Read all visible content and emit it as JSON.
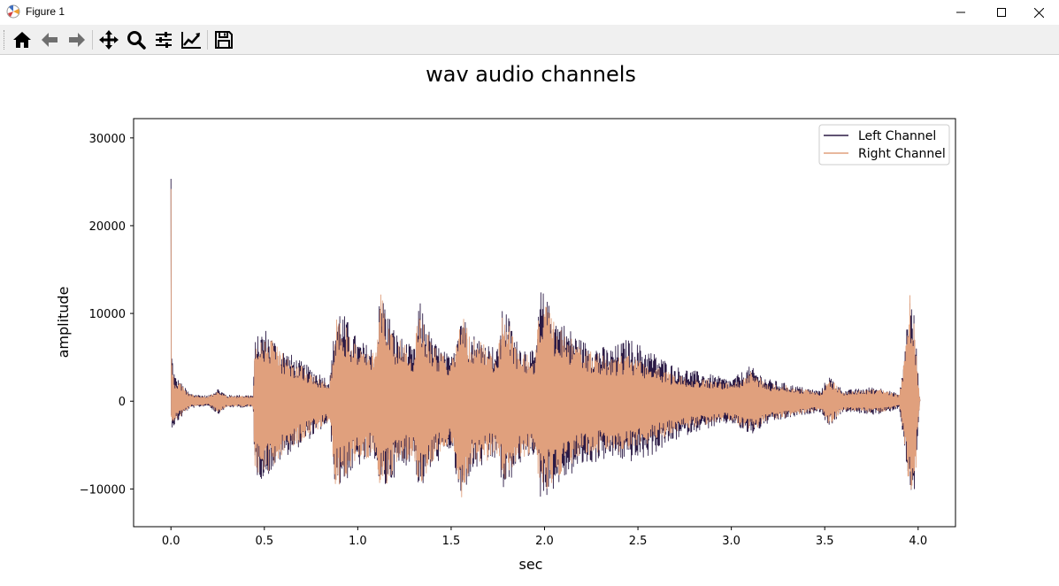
{
  "window": {
    "title": "Figure 1",
    "app_icon": "matplotlib-icon",
    "controls": [
      "minimize-icon",
      "maximize-icon",
      "close-icon"
    ]
  },
  "toolbar": {
    "buttons": [
      {
        "name": "home",
        "icon": "home-icon"
      },
      {
        "name": "back",
        "icon": "arrow-left-icon"
      },
      {
        "name": "forward",
        "icon": "arrow-right-icon"
      },
      {
        "name": "pan",
        "icon": "move-icon"
      },
      {
        "name": "zoom",
        "icon": "magnifier-icon"
      },
      {
        "name": "configure-subplots",
        "icon": "sliders-icon"
      },
      {
        "name": "edit-axis",
        "icon": "line-chart-icon"
      },
      {
        "name": "save",
        "icon": "floppy-disk-icon"
      }
    ]
  },
  "chart_data": {
    "type": "line",
    "title": "wav audio channels",
    "xlabel": "sec",
    "ylabel": "amplitude",
    "xlim": [
      -0.2,
      4.2
    ],
    "ylim": [
      -14300,
      32200
    ],
    "xticks": [
      0.0,
      0.5,
      1.0,
      1.5,
      2.0,
      2.5,
      3.0,
      3.5,
      4.0
    ],
    "xtick_labels": [
      "0.0",
      "0.5",
      "1.0",
      "1.5",
      "2.0",
      "2.5",
      "3.0",
      "3.5",
      "4.0"
    ],
    "yticks": [
      -10000,
      0,
      10000,
      20000,
      30000
    ],
    "ytick_labels": [
      "−10000",
      "0",
      "10000",
      "20000",
      "30000"
    ],
    "grid": false,
    "legend": {
      "position": "top-right"
    },
    "series": [
      {
        "name": "Left Channel",
        "color": "#2b1a45",
        "envelope": {
          "x": [
            0.0,
            0.003,
            0.02,
            0.05,
            0.1,
            0.2,
            0.25,
            0.3,
            0.44,
            0.45,
            0.5,
            0.6,
            0.7,
            0.85,
            0.88,
            0.9,
            1.0,
            1.1,
            1.12,
            1.2,
            1.3,
            1.33,
            1.4,
            1.5,
            1.55,
            1.6,
            1.75,
            1.78,
            1.85,
            1.95,
            1.98,
            2.05,
            2.2,
            2.35,
            2.45,
            2.55,
            2.7,
            2.8,
            2.9,
            3.0,
            3.1,
            3.2,
            3.3,
            3.4,
            3.48,
            3.52,
            3.6,
            3.75,
            3.8,
            3.9,
            3.93,
            3.95,
            3.98,
            4.0,
            4.01
          ],
          "upper": [
            30000,
            6000,
            3000,
            2200,
            900,
            600,
            1500,
            700,
            700,
            7000,
            8500,
            6000,
            4500,
            2500,
            9500,
            11000,
            7000,
            6000,
            13000,
            8000,
            6000,
            11500,
            7000,
            5000,
            11000,
            8000,
            6000,
            11500,
            7000,
            5500,
            13000,
            10000,
            7000,
            6000,
            7200,
            6000,
            4000,
            3500,
            3000,
            2500,
            4000,
            2500,
            2000,
            1500,
            1200,
            3000,
            1200,
            1600,
            1500,
            800,
            6000,
            12500,
            10000,
            3000,
            0
          ],
          "lower": [
            -500,
            -3000,
            -2800,
            -2000,
            -800,
            -500,
            -1500,
            -700,
            -700,
            -8500,
            -9000,
            -6500,
            -5000,
            -2500,
            -10000,
            -10000,
            -7500,
            -6500,
            -11000,
            -8500,
            -6500,
            -10500,
            -7500,
            -5500,
            -12000,
            -8500,
            -6500,
            -11000,
            -7500,
            -6000,
            -11500,
            -10000,
            -7500,
            -6500,
            -7000,
            -6500,
            -4500,
            -3500,
            -3000,
            -2500,
            -4000,
            -2500,
            -2000,
            -1500,
            -1200,
            -3000,
            -1200,
            -1500,
            -1500,
            -800,
            -6000,
            -11000,
            -11000,
            -3000,
            0
          ]
        }
      },
      {
        "name": "Right Channel",
        "color": "#e0a07d",
        "envelope": {
          "x": [
            0.0,
            0.003,
            0.02,
            0.05,
            0.1,
            0.2,
            0.25,
            0.3,
            0.44,
            0.45,
            0.5,
            0.6,
            0.7,
            0.85,
            0.88,
            0.9,
            1.0,
            1.1,
            1.12,
            1.2,
            1.3,
            1.33,
            1.4,
            1.5,
            1.55,
            1.6,
            1.75,
            1.78,
            1.85,
            1.95,
            1.98,
            2.05,
            2.2,
            2.35,
            2.45,
            2.55,
            2.7,
            2.8,
            2.9,
            3.0,
            3.1,
            3.2,
            3.3,
            3.4,
            3.48,
            3.52,
            3.6,
            3.75,
            3.8,
            3.9,
            3.93,
            3.95,
            3.98,
            4.0,
            4.01
          ],
          "upper": [
            25000,
            5000,
            2500,
            2000,
            800,
            500,
            1300,
            600,
            600,
            6500,
            8000,
            5500,
            4000,
            2000,
            9000,
            10000,
            6500,
            5500,
            13300,
            7500,
            5500,
            11000,
            6500,
            4500,
            10800,
            7500,
            5500,
            11000,
            6500,
            5000,
            12500,
            9000,
            6000,
            5000,
            5500,
            4500,
            3000,
            2800,
            2500,
            2000,
            3500,
            2000,
            1800,
            1300,
            1000,
            2800,
            1000,
            1400,
            1300,
            700,
            5500,
            12800,
            9500,
            2500,
            0
          ],
          "lower": [
            -400,
            -2500,
            -2500,
            -1800,
            -700,
            -400,
            -1300,
            -600,
            -600,
            -8000,
            -8500,
            -6000,
            -4500,
            -2200,
            -9500,
            -9500,
            -7000,
            -6000,
            -10800,
            -8000,
            -6000,
            -10000,
            -7000,
            -5000,
            -12200,
            -8000,
            -6000,
            -10500,
            -7000,
            -5500,
            -11000,
            -9000,
            -6500,
            -5500,
            -6000,
            -5000,
            -3500,
            -3000,
            -2500,
            -2200,
            -3500,
            -2200,
            -1800,
            -1300,
            -1000,
            -2800,
            -1000,
            -1300,
            -1300,
            -700,
            -5500,
            -11000,
            -11500,
            -2500,
            0
          ]
        }
      }
    ]
  }
}
